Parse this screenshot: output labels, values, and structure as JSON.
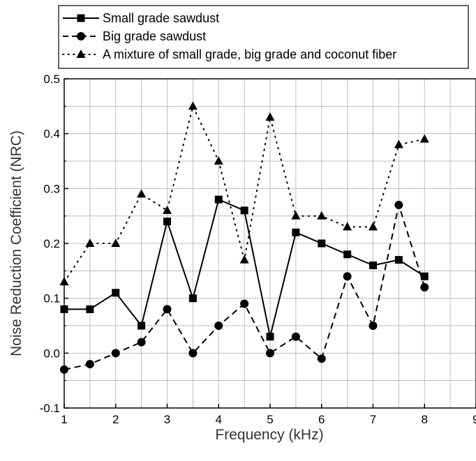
{
  "chart_data": {
    "type": "line",
    "xlabel": "Frequency (kHz)",
    "ylabel": "Noise Reduction Coefficient (NRC)",
    "xlim": [
      1,
      9
    ],
    "ylim": [
      -0.1,
      0.5
    ],
    "x_ticks": [
      "1",
      "2",
      "3",
      "4",
      "5",
      "6",
      "7",
      "8",
      "9"
    ],
    "y_ticks": [
      "-0.1",
      "0.0",
      "0.1",
      "0.2",
      "0.3",
      "0.4",
      "0.5"
    ],
    "grid": true,
    "legend_position": "top",
    "x": [
      1,
      1.5,
      2,
      2.5,
      3,
      3.5,
      4,
      4.5,
      5,
      5.5,
      6,
      6.5,
      7,
      7.5,
      8
    ],
    "series": [
      {
        "name": "Small grade sawdust",
        "marker": "square",
        "line_style": "solid",
        "values": [
          0.08,
          0.08,
          0.11,
          0.05,
          0.24,
          0.1,
          0.28,
          0.26,
          0.03,
          0.22,
          0.2,
          0.18,
          0.16,
          0.17,
          0.14
        ]
      },
      {
        "name": "Big grade sawdust",
        "marker": "circle",
        "line_style": "dashed",
        "values": [
          -0.03,
          -0.02,
          0.0,
          0.02,
          0.08,
          0.0,
          0.05,
          0.09,
          0.0,
          0.03,
          -0.01,
          0.14,
          0.05,
          0.27,
          0.12
        ]
      },
      {
        "name": "A mixture of small grade, big grade and coconut fiber",
        "marker": "triangle",
        "line_style": "dotted",
        "values": [
          0.13,
          0.2,
          0.2,
          0.29,
          0.26,
          0.45,
          0.35,
          0.17,
          0.43,
          0.25,
          0.25,
          0.23,
          0.23,
          0.38,
          0.39
        ]
      }
    ]
  }
}
